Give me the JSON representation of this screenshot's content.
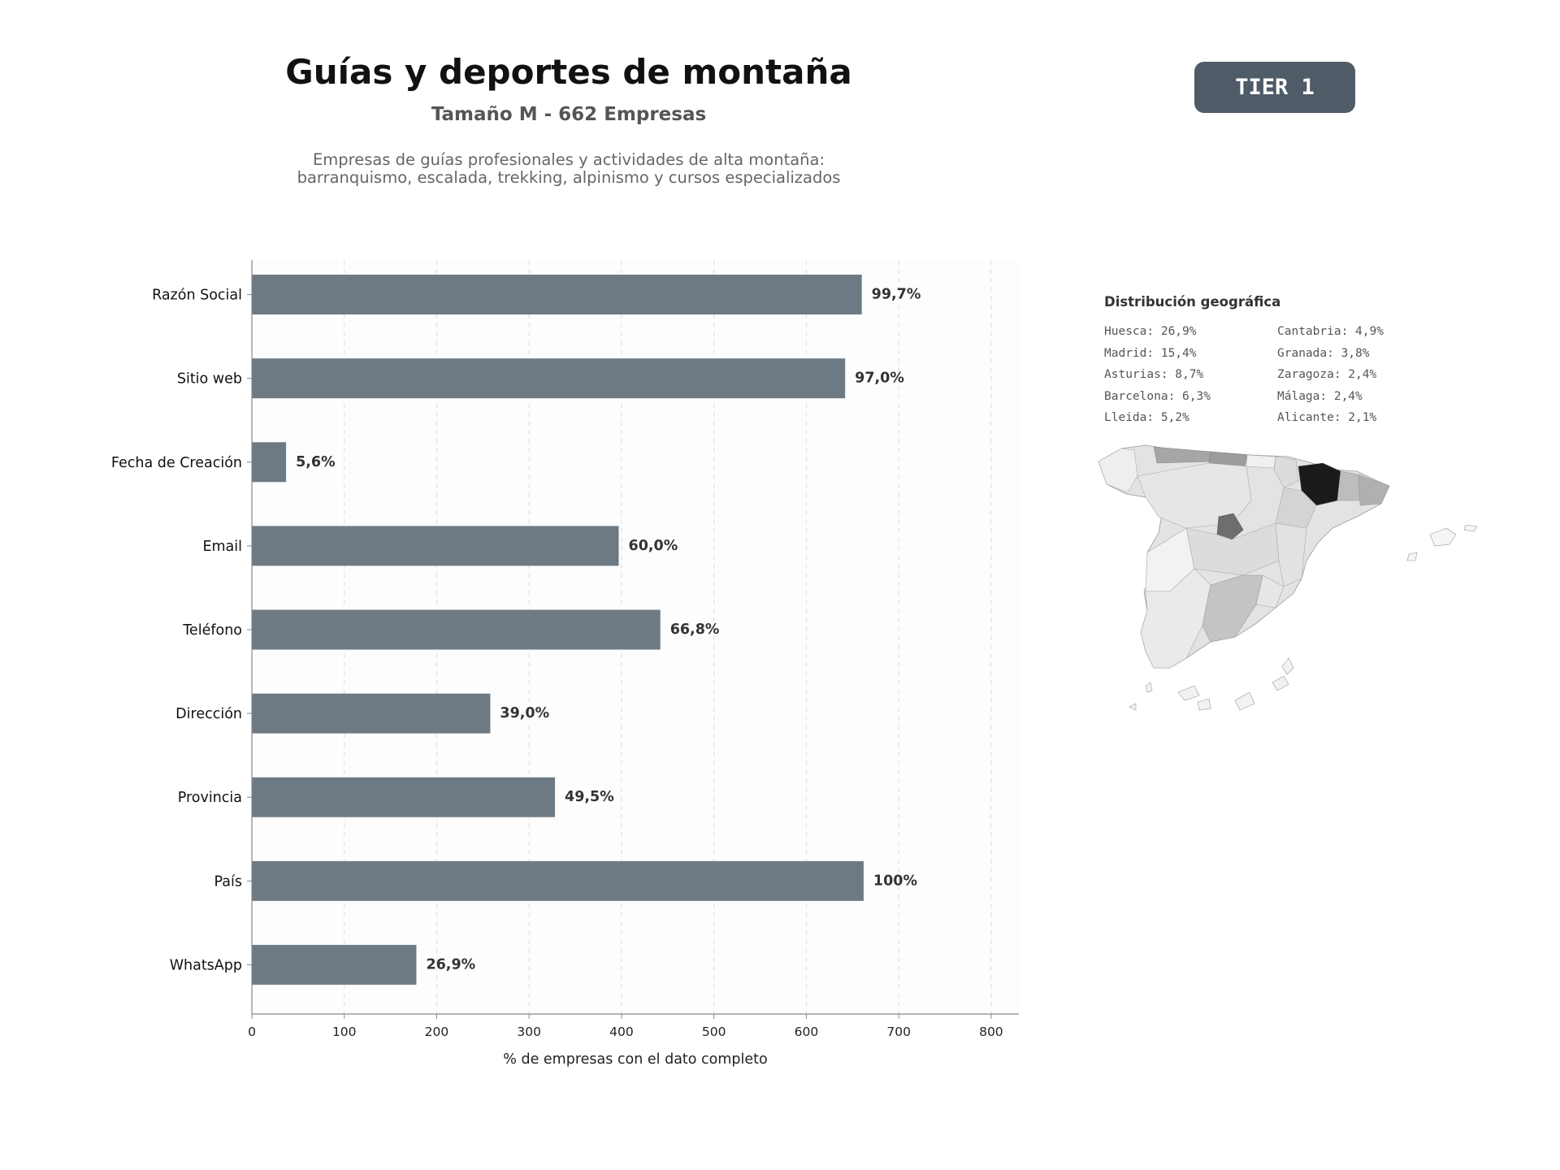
{
  "header": {
    "title": "Guías y deportes de montaña",
    "subtitle": "Tamaño M - 662 Empresas",
    "description_line1": "Empresas de guías profesionales y actividades de alta montaña:",
    "description_line2": "barranquismo, escalada, trekking, alpinismo y cursos especializados",
    "badge": "TIER 1"
  },
  "colors": {
    "bar": "#6e7a83",
    "badge_bg": "#4f5b67",
    "map_highlight": "#1a1a1a"
  },
  "chart_data": {
    "type": "bar",
    "orientation": "horizontal",
    "categories": [
      "Razón Social",
      "Sitio web",
      "Fecha de Creación",
      "Email",
      "Teléfono",
      "Dirección",
      "Provincia",
      "País",
      "WhatsApp"
    ],
    "values": [
      660,
      642,
      37,
      397,
      442,
      258,
      328,
      662,
      178
    ],
    "data_labels": [
      "99,7%",
      "97,0%",
      "5,6%",
      "60,0%",
      "66,8%",
      "39,0%",
      "49,5%",
      "100%",
      "26,9%"
    ],
    "xlabel": "% de empresas con el dato completo",
    "xlim": [
      0,
      830
    ],
    "xticks": [
      0,
      100,
      200,
      300,
      400,
      500,
      600,
      700,
      800
    ],
    "grid": "vertical dashed"
  },
  "geo": {
    "title": "Distribución geográfica",
    "items": [
      "Huesca: 26,9%",
      "Cantabria: 4,9%",
      "Madrid: 15,4%",
      "Granada: 3,8%",
      "Asturias: 8,7%",
      "Zaragoza: 2,4%",
      "Barcelona: 6,3%",
      "Málaga: 2,4%",
      "Lleida: 5,2%",
      "Alicante: 2,1%"
    ]
  }
}
